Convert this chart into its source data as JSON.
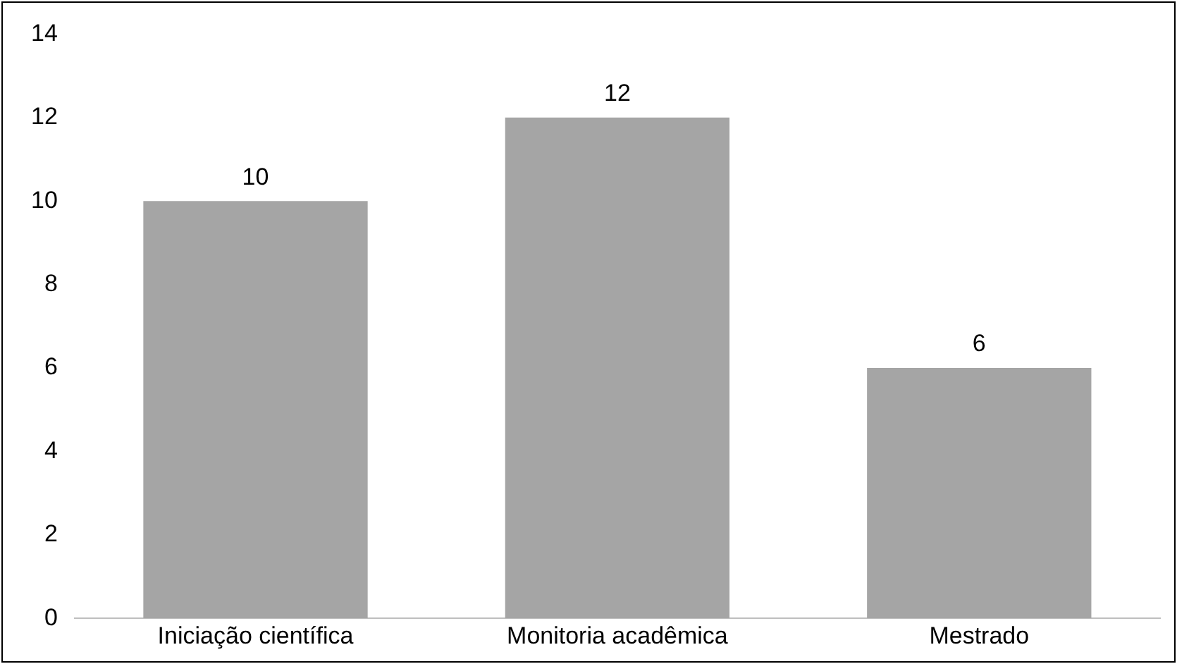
{
  "chart_data": {
    "type": "bar",
    "categories": [
      "Iniciação científica",
      "Monitoria acadêmica",
      "Mestrado"
    ],
    "values": [
      10,
      12,
      6
    ],
    "color": "#a5a5a5",
    "ylim": [
      0,
      14
    ],
    "yticks": [
      0,
      2,
      4,
      6,
      8,
      10,
      12,
      14
    ],
    "grid": false,
    "legend": false,
    "data_labels": true
  }
}
